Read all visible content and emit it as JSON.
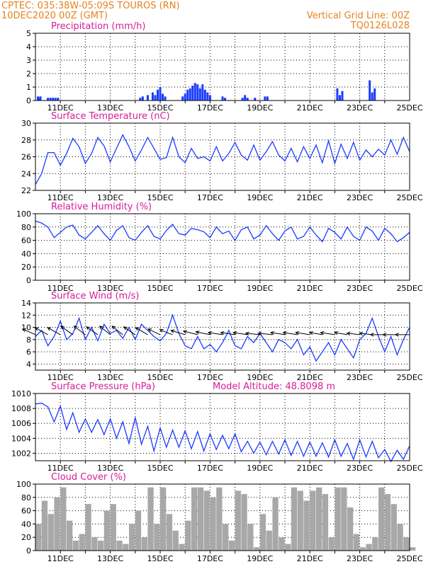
{
  "header": {
    "line1": "CPTEC:   035:38W-05:09S   TOUROS (RN)",
    "line2": "10DEC2020 00Z (GMT)",
    "right1": "Vertical Grid Line: 00Z",
    "right2": "TQ0126L028"
  },
  "colors": {
    "header": "#e6821e",
    "title": "#d81b9a",
    "line": "#1a3cff",
    "bar": "#1a3cff",
    "cloud": "#a8a8a8",
    "arrow": "#000000"
  },
  "x_axis": {
    "start_day": 10,
    "end_day": 25,
    "tick_labels": [
      "11DEC",
      "13DEC",
      "15DEC",
      "17DEC",
      "19DEC",
      "21DEC",
      "23DEC",
      "25DEC"
    ]
  },
  "chart_data": [
    {
      "id": "precip",
      "type": "bar",
      "title": "Precipitation (mm/h)",
      "ylim": [
        0,
        5
      ],
      "yticks": [
        "0",
        "1",
        "2",
        "3",
        "4",
        "5"
      ],
      "ytick_values": [
        0,
        1,
        2,
        3,
        4,
        5
      ],
      "x_days": [
        10.1,
        10.15,
        10.2,
        10.5,
        10.6,
        10.7,
        10.8,
        10.9,
        14.2,
        14.3,
        14.5,
        14.7,
        14.8,
        14.9,
        15.0,
        15.1,
        15.2,
        15.9,
        16.0,
        16.1,
        16.2,
        16.3,
        16.4,
        16.5,
        16.6,
        16.7,
        16.8,
        16.9,
        17.0,
        17.5,
        17.6,
        18.3,
        18.4,
        18.5,
        18.8,
        19.2,
        19.3,
        22.1,
        22.2,
        22.3,
        23.4,
        23.5,
        23.6
      ],
      "values": [
        0.3,
        0.2,
        0.3,
        0.2,
        0.2,
        0.2,
        0.2,
        0.2,
        0.2,
        0.3,
        0.4,
        0.6,
        0.4,
        0.8,
        1.0,
        0.5,
        0.3,
        0.3,
        0.5,
        0.8,
        0.9,
        1.1,
        1.3,
        1.2,
        0.9,
        1.2,
        0.8,
        0.6,
        0.4,
        0.3,
        0.2,
        0.2,
        0.4,
        0.2,
        0.2,
        0.3,
        0.3,
        0.9,
        0.4,
        0.7,
        1.5,
        0.6,
        0.9
      ]
    },
    {
      "id": "temp",
      "type": "line",
      "title": "Surface Temperature (nC)",
      "ylim": [
        22,
        30
      ],
      "yticks": [
        "22",
        "24",
        "26",
        "28",
        "30"
      ],
      "ytick_values": [
        22,
        24,
        26,
        28,
        30
      ],
      "x_days": [
        10.0,
        10.25,
        10.5,
        10.75,
        11.0,
        11.25,
        11.5,
        11.75,
        12.0,
        12.25,
        12.5,
        12.75,
        13.0,
        13.25,
        13.5,
        13.75,
        14.0,
        14.25,
        14.5,
        14.75,
        15.0,
        15.25,
        15.5,
        15.75,
        16.0,
        16.25,
        16.5,
        16.75,
        17.0,
        17.25,
        17.5,
        17.75,
        18.0,
        18.25,
        18.5,
        18.75,
        19.0,
        19.25,
        19.5,
        19.75,
        20.0,
        20.25,
        20.5,
        20.75,
        21.0,
        21.25,
        21.5,
        21.75,
        22.0,
        22.25,
        22.5,
        22.75,
        23.0,
        23.25,
        23.5,
        23.75,
        24.0,
        24.25,
        24.5,
        24.75,
        25.0
      ],
      "values": [
        22.7,
        24.0,
        26.5,
        26.5,
        25.0,
        26.4,
        28.2,
        27.2,
        25.2,
        26.4,
        28.3,
        27.3,
        25.4,
        27.0,
        28.6,
        27.2,
        25.5,
        26.8,
        28.3,
        27.0,
        25.7,
        25.9,
        28.3,
        26.0,
        25.3,
        27.0,
        25.8,
        26.0,
        25.5,
        27.2,
        25.5,
        26.4,
        27.7,
        26.2,
        25.6,
        27.4,
        25.6,
        26.6,
        27.8,
        26.2,
        25.5,
        27.0,
        25.4,
        27.2,
        25.8,
        27.4,
        25.3,
        27.9,
        25.2,
        27.5,
        25.8,
        27.7,
        25.6,
        26.8,
        26.0,
        26.9,
        26.2,
        28.0,
        26.3,
        28.3,
        26.6
      ]
    },
    {
      "id": "rh",
      "type": "line",
      "title": "Relative Humidity (%)",
      "ylim": [
        0,
        100
      ],
      "yticks": [
        "0",
        "20",
        "40",
        "60",
        "80",
        "100"
      ],
      "ytick_values": [
        0,
        20,
        40,
        60,
        80,
        100
      ],
      "x_days": [
        10.0,
        10.25,
        10.5,
        10.75,
        11.0,
        11.25,
        11.5,
        11.75,
        12.0,
        12.25,
        12.5,
        12.75,
        13.0,
        13.25,
        13.5,
        13.75,
        14.0,
        14.25,
        14.5,
        14.75,
        15.0,
        15.25,
        15.5,
        15.75,
        16.0,
        16.25,
        16.5,
        16.75,
        17.0,
        17.25,
        17.5,
        17.75,
        18.0,
        18.25,
        18.5,
        18.75,
        19.0,
        19.25,
        19.5,
        19.75,
        20.0,
        20.25,
        20.5,
        20.75,
        21.0,
        21.25,
        21.5,
        21.75,
        22.0,
        22.25,
        22.5,
        22.75,
        23.0,
        23.25,
        23.5,
        23.75,
        24.0,
        24.25,
        24.5,
        24.75,
        25.0
      ],
      "values": [
        89,
        86,
        80,
        64,
        72,
        80,
        83,
        68,
        62,
        72,
        82,
        70,
        60,
        75,
        82,
        64,
        60,
        72,
        82,
        66,
        62,
        75,
        84,
        70,
        68,
        78,
        76,
        73,
        64,
        80,
        70,
        74,
        60,
        76,
        80,
        62,
        68,
        82,
        70,
        60,
        74,
        80,
        62,
        66,
        80,
        68,
        58,
        78,
        72,
        62,
        80,
        66,
        60,
        80,
        74,
        60,
        78,
        70,
        58,
        64,
        72
      ]
    },
    {
      "id": "wind",
      "type": "line",
      "title": "Surface Wind (m/s)",
      "ylim": [
        3,
        14
      ],
      "yticks": [
        "4",
        "6",
        "8",
        "10",
        "12",
        "14"
      ],
      "ytick_values": [
        4,
        6,
        8,
        10,
        12,
        14
      ],
      "x_days": [
        10.0,
        10.25,
        10.5,
        10.75,
        11.0,
        11.25,
        11.5,
        11.75,
        12.0,
        12.25,
        12.5,
        12.75,
        13.0,
        13.25,
        13.5,
        13.75,
        14.0,
        14.25,
        14.5,
        14.75,
        15.0,
        15.25,
        15.5,
        15.75,
        16.0,
        16.25,
        16.5,
        16.75,
        17.0,
        17.25,
        17.5,
        17.75,
        18.0,
        18.25,
        18.5,
        18.75,
        19.0,
        19.25,
        19.5,
        19.75,
        20.0,
        20.25,
        20.5,
        20.75,
        21.0,
        21.25,
        21.5,
        21.75,
        22.0,
        22.25,
        22.5,
        22.75,
        23.0,
        23.25,
        23.5,
        23.75,
        24.0,
        24.25,
        24.5,
        24.75,
        25.0
      ],
      "values": [
        8.5,
        9.5,
        7.0,
        8.5,
        11.0,
        8.0,
        9.0,
        11.5,
        8.0,
        10.0,
        7.8,
        10.5,
        9.0,
        9.5,
        8.2,
        10.0,
        8.0,
        10.5,
        9.5,
        8.5,
        7.8,
        9.0,
        12.0,
        9.0,
        7.0,
        6.5,
        8.5,
        6.5,
        7.2,
        6.0,
        7.5,
        9.5,
        7.0,
        6.5,
        8.5,
        7.5,
        9.0,
        7.5,
        6.0,
        8.0,
        7.5,
        6.5,
        8.0,
        5.5,
        6.8,
        4.5,
        6.0,
        7.5,
        5.5,
        8.0,
        6.5,
        5.0,
        8.0,
        9.0,
        11.5,
        8.5,
        6.0,
        8.5,
        5.5,
        8.0,
        10.0
      ],
      "arrow_days": [
        10.0,
        10.5,
        11.0,
        11.5,
        12.0,
        12.5,
        13.0,
        13.5,
        14.0,
        14.5,
        15.0,
        15.5,
        16.0,
        16.5,
        17.0,
        17.5,
        18.0,
        18.5,
        19.0,
        19.5,
        20.0,
        20.5,
        21.0,
        21.5,
        22.0,
        22.5,
        23.0,
        23.5,
        24.0,
        24.5,
        25.0
      ],
      "arrow_dx": [
        18,
        18,
        18,
        17,
        16,
        16,
        15,
        15,
        16,
        17,
        17,
        18,
        20,
        20,
        20,
        20,
        20,
        20,
        20,
        20,
        20,
        20,
        20,
        18,
        20,
        18,
        18,
        18,
        20,
        20,
        20
      ],
      "arrow_dy": [
        -8,
        -10,
        -10,
        -12,
        -12,
        -11,
        -12,
        -12,
        -11,
        -10,
        -8,
        -7,
        -6,
        -5,
        -4,
        -3,
        -3,
        -3,
        -2,
        -2,
        -3,
        -3,
        -3,
        -3,
        -3,
        -3,
        -2,
        -2,
        0,
        0,
        0
      ]
    },
    {
      "id": "pressure",
      "type": "line",
      "title": "Surface Pressure (hPa)",
      "annotation": "Model Altitude: 48.8098 m",
      "ylim": [
        1001,
        1010
      ],
      "yticks": [
        "1002",
        "1004",
        "1006",
        "1008",
        "1010"
      ],
      "ytick_values": [
        1002,
        1004,
        1006,
        1008,
        1010
      ],
      "x_days": [
        10.0,
        10.25,
        10.5,
        10.75,
        11.0,
        11.25,
        11.5,
        11.75,
        12.0,
        12.25,
        12.5,
        12.75,
        13.0,
        13.25,
        13.5,
        13.75,
        14.0,
        14.25,
        14.5,
        14.75,
        15.0,
        15.25,
        15.5,
        15.75,
        16.0,
        16.25,
        16.5,
        16.75,
        17.0,
        17.25,
        17.5,
        17.75,
        18.0,
        18.25,
        18.5,
        18.75,
        19.0,
        19.25,
        19.5,
        19.75,
        20.0,
        20.25,
        20.5,
        20.75,
        21.0,
        21.25,
        21.5,
        21.75,
        22.0,
        22.25,
        22.5,
        22.75,
        23.0,
        23.25,
        23.5,
        23.75,
        24.0,
        24.25,
        24.5,
        24.75,
        25.0
      ],
      "values": [
        1008.6,
        1008.7,
        1008.2,
        1006.2,
        1008.3,
        1005.2,
        1007.4,
        1004.8,
        1006.6,
        1004.8,
        1006.5,
        1004.5,
        1006.6,
        1004.0,
        1006.2,
        1003.3,
        1006.8,
        1003.2,
        1005.6,
        1002.3,
        1005.4,
        1002.8,
        1005.1,
        1002.8,
        1005.0,
        1002.6,
        1004.9,
        1002.3,
        1004.6,
        1002.5,
        1004.4,
        1002.6,
        1004.6,
        1002.2,
        1003.6,
        1002.0,
        1003.5,
        1001.8,
        1003.6,
        1001.9,
        1003.8,
        1001.7,
        1003.6,
        1001.6,
        1003.5,
        1001.6,
        1003.4,
        1001.5,
        1003.8,
        1001.6,
        1003.3,
        1001.2,
        1003.8,
        1001.5,
        1003.6,
        1001.4,
        1002.5,
        1000.9,
        1002.4,
        1001.2,
        1003.0
      ]
    },
    {
      "id": "cloud",
      "type": "bar",
      "title": "Cloud Cover (%)",
      "ylim": [
        0,
        100
      ],
      "yticks": [
        "0",
        "20",
        "40",
        "60",
        "80",
        "100"
      ],
      "ytick_values": [
        0,
        20,
        40,
        60,
        80,
        100
      ],
      "x_days": [
        10.0,
        10.25,
        10.5,
        10.75,
        11.0,
        11.25,
        11.5,
        11.75,
        12.0,
        12.25,
        12.5,
        12.75,
        13.0,
        13.25,
        13.5,
        13.75,
        14.0,
        14.25,
        14.5,
        14.75,
        15.0,
        15.25,
        15.5,
        15.75,
        16.0,
        16.25,
        16.5,
        16.75,
        17.0,
        17.25,
        17.5,
        17.75,
        18.0,
        18.25,
        18.5,
        18.75,
        19.0,
        19.25,
        19.5,
        19.75,
        20.0,
        20.25,
        20.5,
        20.75,
        21.0,
        21.25,
        21.5,
        21.75,
        22.0,
        22.25,
        22.5,
        22.75,
        23.0,
        23.25,
        23.5,
        23.75,
        24.0,
        24.25,
        24.5,
        24.75,
        25.0
      ],
      "values": [
        40,
        75,
        55,
        80,
        95,
        45,
        15,
        25,
        70,
        20,
        15,
        60,
        70,
        15,
        10,
        40,
        60,
        20,
        95,
        40,
        95,
        55,
        30,
        10,
        45,
        95,
        95,
        90,
        80,
        95,
        40,
        15,
        90,
        85,
        40,
        5,
        55,
        30,
        80,
        20,
        10,
        95,
        90,
        75,
        90,
        95,
        85,
        20,
        95,
        95,
        65,
        25,
        5,
        10,
        20,
        95,
        85,
        70,
        40,
        20,
        5
      ]
    }
  ]
}
